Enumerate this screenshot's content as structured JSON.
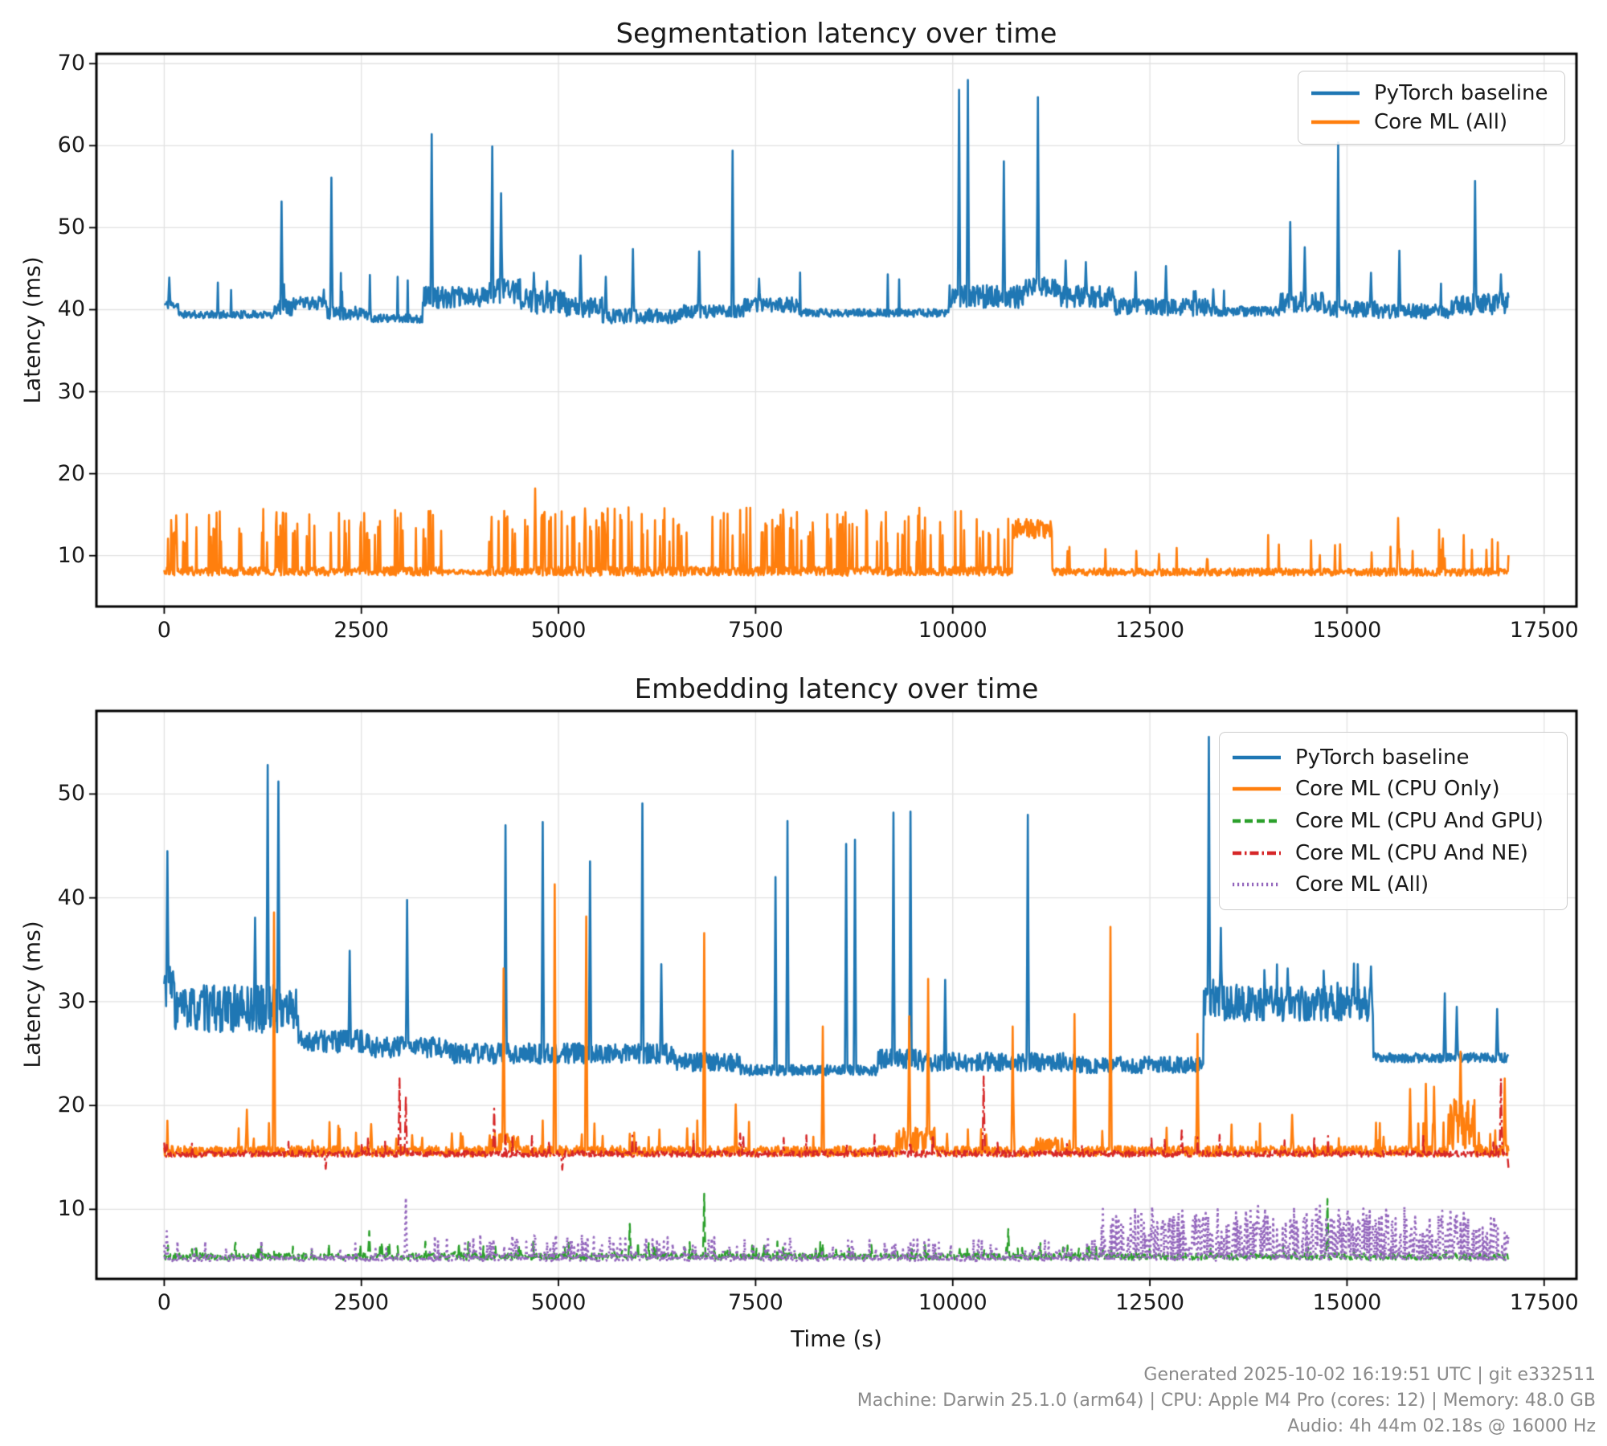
{
  "style": {
    "background": "#ffffff",
    "grid_color": "#e2e2e2",
    "spine_color": "#000000",
    "text_color": "#1a1a1a",
    "footer_color": "#8a8a8a"
  },
  "footer": {
    "lines": [
      "Generated 2025-10-02 16:19:51 UTC | git e332511",
      "Machine: Darwin 25.1.0 (arm64) | CPU: Apple M4 Pro (cores: 12) | Memory: 48.0 GB",
      "Audio: 4h 44m 02.18s @ 16000 Hz"
    ]
  },
  "chart_data": [
    {
      "type": "line",
      "title": "Segmentation latency over time",
      "xlabel": "",
      "ylabel": "Latency (ms)",
      "x_unit": "seconds",
      "xlim": [
        -860,
        17910
      ],
      "ylim": [
        3.8,
        71.2
      ],
      "xticks": [
        0,
        2500,
        5000,
        7500,
        10000,
        12500,
        15000,
        17500
      ],
      "yticks": [
        10,
        20,
        30,
        40,
        50,
        60,
        70
      ],
      "grid": true,
      "legend_position": "upper-right",
      "t_end": 17050,
      "series": [
        {
          "name": "PyTorch baseline",
          "color": "#1f77b4",
          "dash": "solid",
          "width": 2.6,
          "seed": 11,
          "step": 8,
          "segments": [
            [
              0,
              180,
              40.6,
              0.5
            ],
            [
              180,
              1400,
              39.4,
              0.45
            ],
            [
              1400,
              1620,
              40.3,
              1.0
            ],
            [
              1620,
              2060,
              40.8,
              0.8
            ],
            [
              2060,
              2620,
              39.6,
              0.8
            ],
            [
              2620,
              3280,
              38.9,
              0.5
            ],
            [
              3280,
              4100,
              41.5,
              1.3
            ],
            [
              4100,
              4520,
              42.3,
              1.5
            ],
            [
              4520,
              5100,
              41.0,
              1.5
            ],
            [
              5100,
              5560,
              40.3,
              1.2
            ],
            [
              5560,
              6560,
              39.2,
              0.9
            ],
            [
              6560,
              7350,
              39.8,
              0.8
            ],
            [
              7350,
              8050,
              40.6,
              0.9
            ],
            [
              8050,
              9950,
              39.6,
              0.5
            ],
            [
              9950,
              10900,
              41.6,
              1.4
            ],
            [
              10900,
              11350,
              42.8,
              1.2
            ],
            [
              11350,
              12050,
              41.6,
              1.3
            ],
            [
              12050,
              13250,
              40.3,
              1.1
            ],
            [
              13250,
              14150,
              39.8,
              0.6
            ],
            [
              14150,
              14700,
              40.9,
              1.2
            ],
            [
              14700,
              15400,
              40.1,
              1.0
            ],
            [
              15400,
              16300,
              39.8,
              0.9
            ],
            [
              16300,
              17051,
              40.7,
              1.3
            ]
          ],
          "spikes": [
            [
              60,
              43.9
            ],
            [
              1490,
              53.2
            ],
            [
              2120,
              56.1
            ],
            [
              3390,
              61.4
            ],
            [
              4160,
              59.9
            ],
            [
              4270,
              54.2
            ],
            [
              4690,
              44.5
            ],
            [
              5280,
              46.6
            ],
            [
              5600,
              44.0
            ],
            [
              5940,
              47.4
            ],
            [
              6780,
              47.1
            ],
            [
              7210,
              59.4
            ],
            [
              7540,
              43.8
            ],
            [
              10080,
              66.8
            ],
            [
              10190,
              68.0
            ],
            [
              10650,
              58.1
            ],
            [
              11080,
              65.9
            ],
            [
              11430,
              46.0
            ],
            [
              11690,
              45.8
            ],
            [
              12320,
              44.6
            ],
            [
              12700,
              45.3
            ],
            [
              13300,
              42.5
            ],
            [
              14280,
              50.7
            ],
            [
              14460,
              47.6
            ],
            [
              14890,
              60.4
            ],
            [
              15300,
              44.5
            ],
            [
              15660,
              47.2
            ],
            [
              16620,
              55.7
            ],
            [
              16950,
              44.3
            ]
          ],
          "dips": [],
          "random_spikes": [
            {
              "t0": 300,
              "t1": 17050,
              "rate": 0.008,
              "min": 42,
              "max": 45
            }
          ]
        },
        {
          "name": "Core ML (All)",
          "color": "#ff7f0e",
          "dash": "solid",
          "width": 2.6,
          "seed": 22,
          "step": 8,
          "segments": [
            [
              0,
              3560,
              8.1,
              0.55
            ],
            [
              3560,
              4100,
              8.0,
              0.3
            ],
            [
              4100,
              10760,
              8.1,
              0.55
            ],
            [
              10760,
              11260,
              13.3,
              1.2
            ],
            [
              11260,
              17051,
              8.0,
              0.45
            ]
          ],
          "spikes": [
            [
              4700,
              18.2
            ],
            [
              15650,
              14.6
            ]
          ],
          "dips": [],
          "random_spikes": [
            {
              "t0": 20,
              "t1": 3560,
              "rate": 0.16,
              "min": 11.5,
              "max": 15.8
            },
            {
              "t0": 4100,
              "t1": 9900,
              "rate": 0.16,
              "min": 11.5,
              "max": 15.9
            },
            {
              "t0": 9900,
              "t1": 10760,
              "rate": 0.12,
              "min": 11.5,
              "max": 15.5
            },
            {
              "t0": 11260,
              "t1": 13300,
              "rate": 0.02,
              "min": 9.5,
              "max": 11.2
            },
            {
              "t0": 13300,
              "t1": 15200,
              "rate": 0.04,
              "min": 9.5,
              "max": 12.6
            },
            {
              "t0": 15200,
              "t1": 17050,
              "rate": 0.06,
              "min": 9.5,
              "max": 13.5
            }
          ]
        }
      ]
    },
    {
      "type": "line",
      "title": "Embedding latency over time",
      "xlabel": "Time (s)",
      "ylabel": "Latency (ms)",
      "x_unit": "seconds",
      "xlim": [
        -860,
        17910
      ],
      "ylim": [
        3.3,
        58.0
      ],
      "xticks": [
        0,
        2500,
        5000,
        7500,
        10000,
        12500,
        15000,
        17500
      ],
      "yticks": [
        10,
        20,
        30,
        40,
        50
      ],
      "grid": true,
      "legend_position": "upper-right",
      "t_end": 17050,
      "series": [
        {
          "name": "PyTorch baseline",
          "color": "#1f77b4",
          "dash": "solid",
          "width": 2.6,
          "seed": 33,
          "step": 8,
          "segments": [
            [
              0,
              130,
              31.5,
              2.0
            ],
            [
              130,
              1700,
              29.3,
              2.3
            ],
            [
              1700,
              2600,
              26.2,
              1.1
            ],
            [
              2600,
              3600,
              25.6,
              1.0
            ],
            [
              3600,
              6500,
              25.0,
              1.0
            ],
            [
              6500,
              7300,
              24.2,
              0.9
            ],
            [
              7300,
              9050,
              23.4,
              0.5
            ],
            [
              9050,
              9600,
              24.4,
              1.0
            ],
            [
              9600,
              11550,
              24.2,
              0.9
            ],
            [
              11550,
              13180,
              23.9,
              0.8
            ],
            [
              13180,
              15330,
              29.8,
              1.7
            ],
            [
              15330,
              17051,
              24.6,
              0.45
            ]
          ],
          "spikes": [
            [
              40,
              44.5
            ],
            [
              1150,
              38.1
            ],
            [
              1310,
              52.8
            ],
            [
              1450,
              51.2
            ],
            [
              2350,
              34.9
            ],
            [
              3080,
              39.8
            ],
            [
              4330,
              47.0
            ],
            [
              4800,
              47.3
            ],
            [
              5400,
              43.5
            ],
            [
              6060,
              49.1
            ],
            [
              6300,
              33.6
            ],
            [
              7750,
              42.0
            ],
            [
              7900,
              47.4
            ],
            [
              8650,
              45.2
            ],
            [
              8760,
              45.6
            ],
            [
              9250,
              48.2
            ],
            [
              9460,
              48.3
            ],
            [
              9900,
              32.1
            ],
            [
              10950,
              48.0
            ],
            [
              13250,
              55.5
            ],
            [
              13400,
              37.1
            ],
            [
              14250,
              33.2
            ],
            [
              15300,
              33.4
            ],
            [
              16240,
              30.8
            ],
            [
              16390,
              29.5
            ],
            [
              16900,
              29.3
            ]
          ],
          "dips": [],
          "random_spikes": [
            {
              "t0": 13180,
              "t1": 15330,
              "rate": 0.05,
              "min": 31,
              "max": 34
            }
          ]
        },
        {
          "name": "Core ML (CPU Only)",
          "color": "#ff7f0e",
          "dash": "solid",
          "width": 2.6,
          "seed": 44,
          "step": 8,
          "segments": [
            [
              0,
              4100,
              15.6,
              0.5
            ],
            [
              4100,
              4520,
              16.4,
              1.0
            ],
            [
              4520,
              9300,
              15.6,
              0.5
            ],
            [
              9300,
              9780,
              16.6,
              1.3
            ],
            [
              9780,
              11050,
              15.6,
              0.5
            ],
            [
              11050,
              11420,
              16.1,
              0.8
            ],
            [
              11420,
              16280,
              15.6,
              0.5
            ],
            [
              16280,
              16620,
              18.0,
              2.6
            ],
            [
              16620,
              17051,
              15.7,
              0.6
            ]
          ],
          "spikes": [
            [
              1050,
              19.6
            ],
            [
              1390,
              38.6
            ],
            [
              2620,
              18.2
            ],
            [
              4300,
              33.2
            ],
            [
              4950,
              41.3
            ],
            [
              5350,
              38.2
            ],
            [
              6850,
              36.6
            ],
            [
              7250,
              20.1
            ],
            [
              8350,
              27.6
            ],
            [
              9450,
              28.6
            ],
            [
              9690,
              32.2
            ],
            [
              10760,
              27.6
            ],
            [
              11540,
              28.8
            ],
            [
              12000,
              37.2
            ],
            [
              13100,
              26.9
            ],
            [
              14300,
              19.1
            ],
            [
              15800,
              21.6
            ],
            [
              16000,
              22.1
            ],
            [
              16100,
              21.8
            ],
            [
              16440,
              25.2
            ],
            [
              17000,
              22.6
            ]
          ],
          "dips": [],
          "random_spikes": [
            {
              "t0": 0,
              "t1": 17050,
              "rate": 0.025,
              "min": 16.5,
              "max": 18.6
            }
          ]
        },
        {
          "name": "Core ML (CPU And GPU)",
          "color": "#2ca02c",
          "dash": "dashed",
          "width": 2.4,
          "seed": 55,
          "step": 8,
          "segments": [
            [
              0,
              17051,
              5.45,
              0.32
            ]
          ],
          "spikes": [
            [
              2600,
              7.9
            ],
            [
              5900,
              8.6
            ],
            [
              6850,
              11.5
            ],
            [
              10700,
              8.1
            ],
            [
              14750,
              11.0
            ]
          ],
          "dips": [],
          "random_spikes": [
            {
              "t0": 0,
              "t1": 11800,
              "rate": 0.05,
              "min": 5.8,
              "max": 6.9
            },
            {
              "t0": 11800,
              "t1": 17050,
              "rate": 0.02,
              "min": 5.8,
              "max": 6.6
            }
          ]
        },
        {
          "name": "Core ML (CPU And NE)",
          "color": "#d62728",
          "dash": "dashdot",
          "width": 2.4,
          "seed": 66,
          "step": 8,
          "segments": [
            [
              0,
              17051,
              15.35,
              0.3
            ]
          ],
          "spikes": [
            [
              2980,
              22.6
            ],
            [
              3060,
              20.9
            ],
            [
              4180,
              19.7
            ],
            [
              7300,
              17.3
            ],
            [
              10390,
              22.8
            ],
            [
              12900,
              17.6
            ],
            [
              16950,
              22.6
            ]
          ],
          "dips": [
            [
              2050,
              13.9
            ],
            [
              5050,
              13.8
            ],
            [
              17045,
              14.0
            ]
          ],
          "random_spikes": [
            {
              "t0": 0,
              "t1": 17050,
              "rate": 0.015,
              "min": 16.2,
              "max": 17.2
            }
          ]
        },
        {
          "name": "Core ML (All)",
          "color": "#9467bd",
          "dash": "dotted",
          "width": 2.8,
          "seed": 77,
          "step": 8,
          "segments": [
            [
              0,
              17051,
              5.3,
              0.28
            ]
          ],
          "spikes": [
            [
              30,
              7.9
            ],
            [
              3060,
              11.1
            ]
          ],
          "dips": [],
          "random_spikes": [
            {
              "t0": 0,
              "t1": 3400,
              "rate": 0.05,
              "min": 5.6,
              "max": 7.0
            },
            {
              "t0": 3400,
              "t1": 5600,
              "rate": 0.22,
              "min": 5.5,
              "max": 7.6
            },
            {
              "t0": 5600,
              "t1": 8600,
              "rate": 0.16,
              "min": 5.5,
              "max": 7.4
            },
            {
              "t0": 8600,
              "t1": 11800,
              "rate": 0.12,
              "min": 5.5,
              "max": 7.2
            },
            {
              "t0": 11800,
              "t1": 17050,
              "rate": 0.6,
              "min": 5.4,
              "max": 9.4
            },
            {
              "t0": 11900,
              "t1": 16800,
              "rate": 0.07,
              "min": 9.0,
              "max": 10.4
            }
          ]
        }
      ]
    }
  ]
}
